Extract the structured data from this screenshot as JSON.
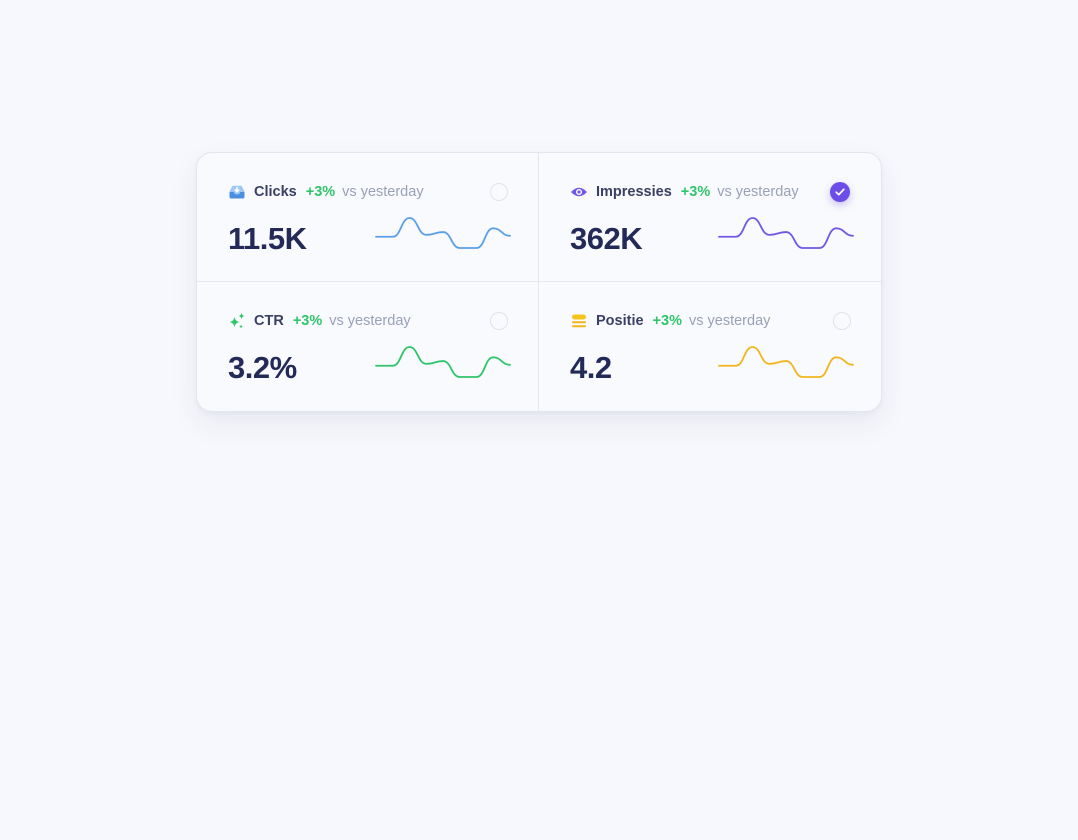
{
  "metrics": [
    {
      "id": "clicks",
      "label": "Clicks",
      "change": "+3%",
      "compare": "vs yesterday",
      "value": "11.5K",
      "selected": false,
      "icon": "inbox-download-icon",
      "color": "#5b9fe6",
      "trend": [
        0,
        0,
        1,
        0.1,
        0.25,
        -0.6,
        -0.6,
        0.45,
        0.05
      ]
    },
    {
      "id": "impressies",
      "label": "Impressies",
      "change": "+3%",
      "compare": "vs yesterday",
      "value": "362K",
      "selected": true,
      "icon": "eye-icon",
      "color": "#7257e4",
      "trend": [
        0,
        0,
        1,
        0.1,
        0.25,
        -0.6,
        -0.6,
        0.45,
        0.05
      ]
    },
    {
      "id": "ctr",
      "label": "CTR",
      "change": "+3%",
      "compare": "vs yesterday",
      "value": "3.2%",
      "selected": false,
      "icon": "sparkles-icon",
      "color": "#2fc56a",
      "trend": [
        0,
        0,
        1,
        0.1,
        0.25,
        -0.6,
        -0.6,
        0.45,
        0.05
      ]
    },
    {
      "id": "positie",
      "label": "Positie",
      "change": "+3%",
      "compare": "vs yesterday",
      "value": "4.2",
      "selected": false,
      "icon": "stack-icon",
      "color": "#f2b51d",
      "trend": [
        0,
        0,
        1,
        0.1,
        0.25,
        -0.6,
        -0.6,
        0.45,
        0.05
      ]
    }
  ],
  "colors": {
    "positive": "#2fc56a",
    "selected": "#6c4de8"
  }
}
